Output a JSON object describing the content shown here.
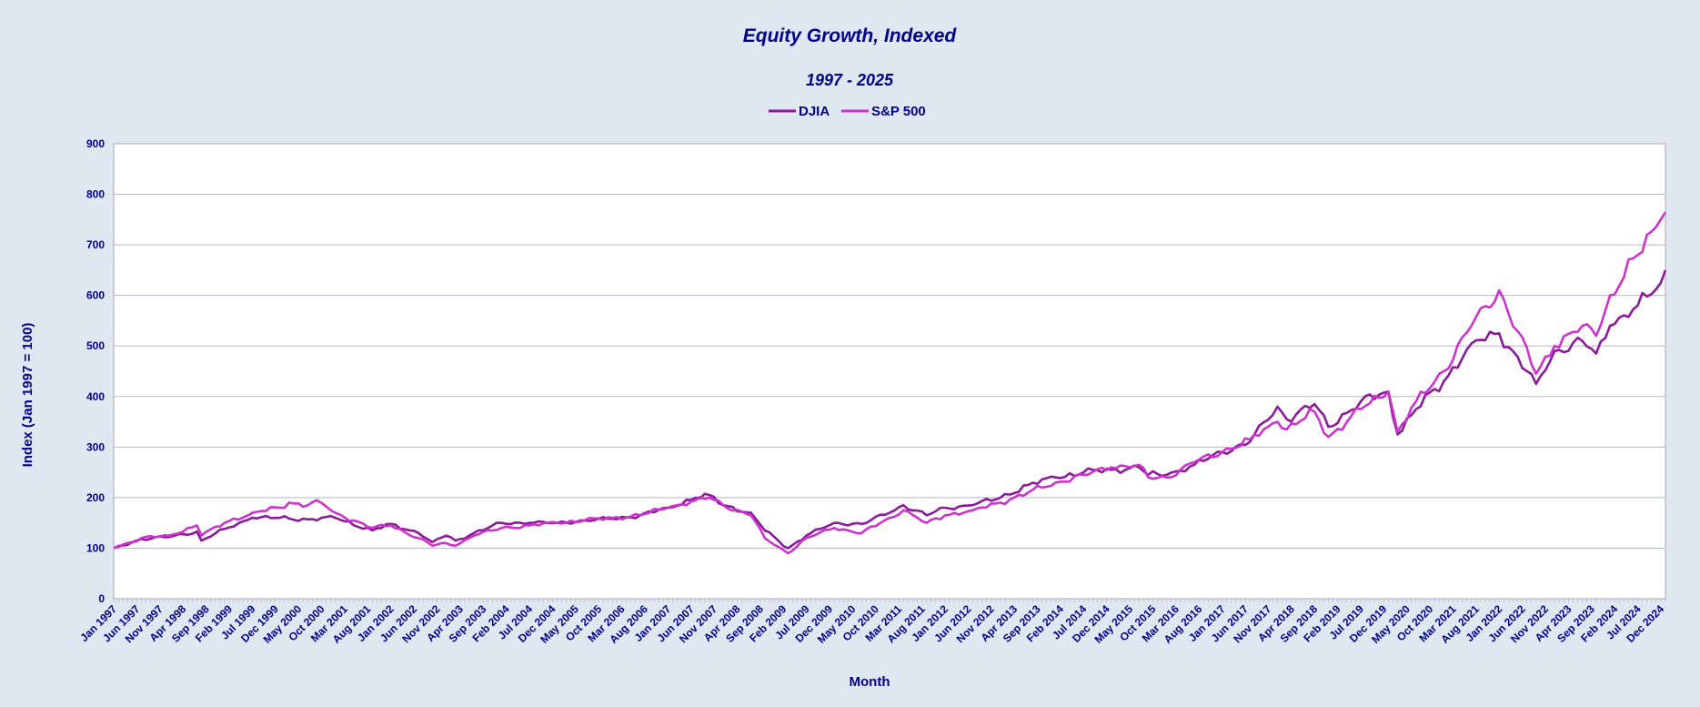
{
  "chart_data": {
    "type": "line",
    "title": "Equity Growth, Indexed",
    "subtitle": "1997 - 2025",
    "xlabel": "Month",
    "ylabel": "Index (Jan 1997 = 100)",
    "ylim": [
      0,
      900
    ],
    "yticks": [
      0,
      100,
      200,
      300,
      400,
      500,
      600,
      700,
      800,
      900
    ],
    "x_range": [
      "Jan 1997",
      "Jan 2025"
    ],
    "grid": "horizontal",
    "legend": "top-center",
    "x_tick_labels": [
      "Jan 1997",
      "Jun 1997",
      "Nov 1997",
      "Apr 1998",
      "Sep 1998",
      "Feb 1999",
      "Jul 1999",
      "Dec 1999",
      "May 2000",
      "Oct 2000",
      "Mar 2001",
      "Aug 2001",
      "Jan 2002",
      "Jun 2002",
      "Nov 2002",
      "Apr 2003",
      "Sep 2003",
      "Feb 2004",
      "Jul 2004",
      "Dec 2004",
      "May 2005",
      "Oct 2005",
      "Mar 2006",
      "Aug 2006",
      "Jan 2007",
      "Jun 2007",
      "Nov 2007",
      "Apr 2008",
      "Sep 2008",
      "Feb 2009",
      "Jul 2009",
      "Dec 2009",
      "May 2010",
      "Oct 2010",
      "Mar 2011",
      "Aug 2011",
      "Jan 2012",
      "Jun 2012",
      "Nov 2012",
      "Apr 2013",
      "Sep 2013",
      "Feb 2014",
      "Jul 2014",
      "Dec 2014",
      "May 2015",
      "Oct 2015",
      "Mar 2016",
      "Aug 2016",
      "Jan 2017",
      "Jun 2017",
      "Nov 2017",
      "Apr 2018",
      "Sep 2018",
      "Feb 2019",
      "Jul 2019",
      "Dec 2019",
      "May 2020",
      "Oct 2020",
      "Mar 2021",
      "Aug 2021",
      "Jan 2022",
      "Jun 2022",
      "Nov 2022",
      "Apr 2023",
      "Sep 2023",
      "Feb 2024",
      "Jul 2024",
      "Dec 2024"
    ],
    "series": [
      {
        "name": "DJIA",
        "color": "#8b1a9b",
        "points": [
          [
            "Jan 1997",
            100
          ],
          [
            "Jul 1997",
            118
          ],
          [
            "Jan 1998",
            122
          ],
          [
            "Jul 1998",
            133
          ],
          [
            "Aug 1998",
            115
          ],
          [
            "Jan 1999",
            138
          ],
          [
            "Jul 1999",
            160
          ],
          [
            "Jan 2000",
            160
          ],
          [
            "Jul 2000",
            157
          ],
          [
            "Jan 2001",
            160
          ],
          [
            "Sep 2001",
            135
          ],
          [
            "Jan 2002",
            148
          ],
          [
            "Jul 2002",
            130
          ],
          [
            "Oct 2002",
            112
          ],
          [
            "Jan 2003",
            125
          ],
          [
            "Mar 2003",
            115
          ],
          [
            "Jul 2003",
            130
          ],
          [
            "Jan 2004",
            150
          ],
          [
            "Jul 2004",
            150
          ],
          [
            "Jan 2005",
            150
          ],
          [
            "Jul 2005",
            155
          ],
          [
            "Jan 2006",
            158
          ],
          [
            "Jul 2006",
            165
          ],
          [
            "Jan 2007",
            180
          ],
          [
            "Jul 2007",
            200
          ],
          [
            "Oct 2007",
            205
          ],
          [
            "Jan 2008",
            185
          ],
          [
            "Jul 2008,",
            170
          ],
          [
            "Oct 2008",
            135
          ],
          [
            "Mar 2009",
            100
          ],
          [
            "Jul 2009",
            125
          ],
          [
            "Jan 2010",
            150
          ],
          [
            "Jul 2010",
            148
          ],
          [
            "Jan 2011",
            170
          ],
          [
            "Apr 2011",
            185
          ],
          [
            "Sep 2011",
            165
          ],
          [
            "Jan 2012",
            180
          ],
          [
            "Jul 2012",
            185
          ],
          [
            "Jan 2013",
            200
          ],
          [
            "Jul 2013",
            225
          ],
          [
            "Jan 2014",
            240
          ],
          [
            "Jul 2014",
            250
          ],
          [
            "Jan 2015,",
            255
          ],
          [
            "Jul 2015",
            260
          ],
          [
            "Sep 2015",
            245
          ],
          [
            "Jan 2016",
            245
          ],
          [
            "Jul 2016",
            265
          ],
          [
            "Jan 2017",
            290
          ],
          [
            "Jul 2017",
            310
          ],
          [
            "Jan 2018",
            380
          ],
          [
            "Mar 2018",
            355
          ],
          [
            "Sep 2018",
            385
          ],
          [
            "Dec 2018",
            340
          ],
          [
            "Jul 2019",
            390
          ],
          [
            "Jan 2020",
            410
          ],
          [
            "Mar 2020",
            325
          ],
          [
            "Jul 2020",
            375
          ],
          [
            "Jan 2021",
            430
          ],
          [
            "Jul 2021",
            505
          ],
          [
            "Jan 2022",
            525
          ],
          [
            "Sep 2022",
            425
          ],
          [
            "Jan 2023",
            490
          ],
          [
            "Jul 2023",
            510
          ],
          [
            "Oct 2023",
            485
          ],
          [
            "Jan 2024",
            540
          ],
          [
            "Jul 2024",
            580
          ],
          [
            "Dec 2024",
            625
          ],
          [
            "Jan 2025",
            650
          ]
        ]
      },
      {
        "name": "S&P 500",
        "color": "#cc33cc",
        "points": [
          [
            "Jan 1997",
            100
          ],
          [
            "Jul 1997",
            120
          ],
          [
            "Jan 1998",
            125
          ],
          [
            "Jul 1998",
            145
          ],
          [
            "Aug 1998",
            125
          ],
          [
            "Jan 1999",
            150
          ],
          [
            "Jul 1999",
            170
          ],
          [
            "Jan 2000",
            180
          ],
          [
            "Mar 2000",
            190
          ],
          [
            "Jul 2000",
            185
          ],
          [
            "Sep 2000",
            195
          ],
          [
            "Jan 2001",
            170
          ],
          [
            "Sep 2001",
            140
          ],
          [
            "Jan 2002",
            145
          ],
          [
            "Jul 2002",
            120
          ],
          [
            "Oct 2002",
            105
          ],
          [
            "Jan 2003",
            110
          ],
          [
            "Mar 2003",
            105
          ],
          [
            "Jul 2003",
            125
          ],
          [
            "Jan 2004",
            140
          ],
          [
            "Jul 2004",
            145
          ],
          [
            "Jan 2005",
            150
          ],
          [
            "Jul 2005",
            155
          ],
          [
            "Jan 2006",
            160
          ],
          [
            "Jul 2006",
            165
          ],
          [
            "Jan 2007",
            180
          ],
          [
            "Jul 2007",
            195
          ],
          [
            "Oct 2007",
            200
          ],
          [
            "Jan 2008",
            185
          ],
          [
            "Jul 2008",
            165
          ],
          [
            "Oct 2008",
            120
          ],
          [
            "Mar 2009",
            90
          ],
          [
            "Jul 2009",
            120
          ],
          [
            "Jan 2010",
            140
          ],
          [
            "Jul 2010",
            130
          ],
          [
            "Jan 2011",
            160
          ],
          [
            "Apr 2011",
            175
          ],
          [
            "Sep 2011",
            150
          ],
          [
            "Jan 2012",
            165
          ],
          [
            "Jul 2012",
            175
          ],
          [
            "Jan 2013",
            190
          ],
          [
            "Jul 2013",
            210
          ],
          [
            "Jan 2014",
            230
          ],
          [
            "Jul 2014",
            245
          ],
          [
            "Jan 2015",
            260
          ],
          [
            "Jul 2015",
            265
          ],
          [
            "Sep 2015",
            240
          ],
          [
            "Jan 2016",
            240
          ],
          [
            "Jul 2016",
            270
          ],
          [
            "Jan 2017",
            290
          ],
          [
            "Jul 2017",
            315
          ],
          [
            "Jan 2018",
            350
          ],
          [
            "Mar 2018",
            335
          ],
          [
            "Sep 2018",
            370
          ],
          [
            "Dec 2018",
            320
          ],
          [
            "Jul 2019",
            375
          ],
          [
            "Jan 2020",
            410
          ],
          [
            "Mar 2020",
            330
          ],
          [
            "Jul 2020",
            390
          ],
          [
            "Jan 2021",
            450
          ],
          [
            "Jul 2021",
            540
          ],
          [
            "Jan 2022",
            610
          ],
          [
            "Sep 2022",
            445
          ],
          [
            "Jan 2023",
            500
          ],
          [
            "Jul 2023",
            540
          ],
          [
            "Oct 2023",
            520
          ],
          [
            "Jan 2024",
            600
          ],
          [
            "Jul 2024",
            680
          ],
          [
            "Dec 2024",
            750
          ],
          [
            "Jan 2025",
            765
          ]
        ]
      }
    ]
  }
}
